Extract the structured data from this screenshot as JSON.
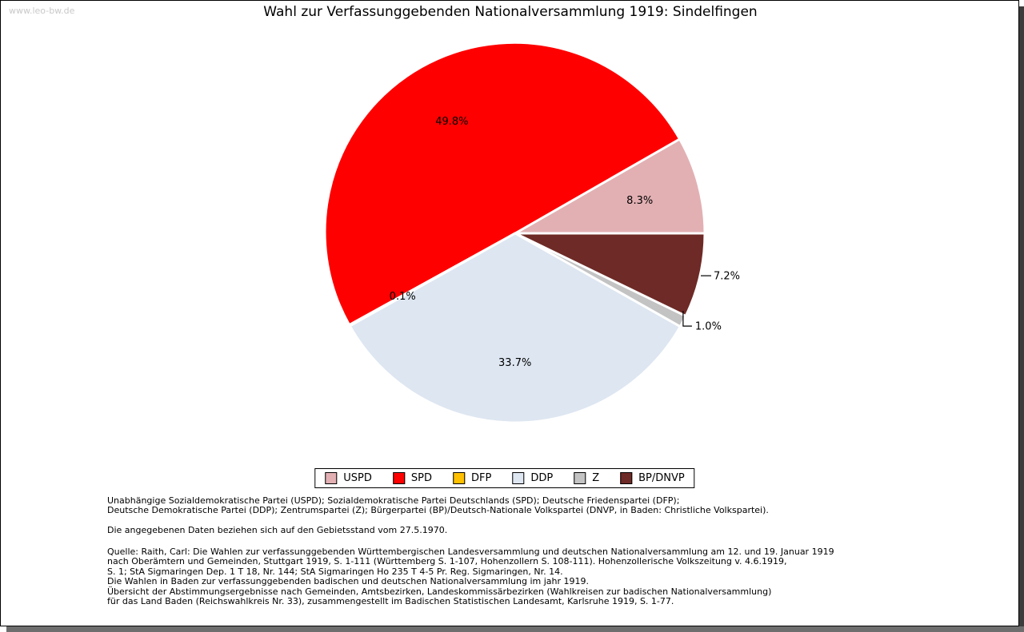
{
  "watermark": "www.leo-bw.de",
  "title": "Wahl zur Verfassunggebenden Nationalversammlung 1919: Sindelfingen",
  "chart_data": {
    "type": "pie",
    "title": "Wahl zur Verfassunggebenden Nationalversammlung 1919: Sindelfingen",
    "start_angle_deg": 0,
    "direction": "counterclockwise",
    "unit": "percent",
    "legend_position": "bottom",
    "slices": [
      {
        "label": "USPD",
        "value": 8.3,
        "display": "8.3%",
        "color": "#e2b0b3",
        "label_mode": "inside"
      },
      {
        "label": "SPD",
        "value": 49.8,
        "display": "49.8%",
        "color": "#ff0000",
        "label_mode": "inside"
      },
      {
        "label": "DFP",
        "value": 0.1,
        "display": "0.1%",
        "color": "#ffc000",
        "label_mode": "inside"
      },
      {
        "label": "DDP",
        "value": 33.7,
        "display": "33.7%",
        "color": "#dde6f1",
        "label_mode": "inside"
      },
      {
        "label": "Z",
        "value": 1.0,
        "display": "1.0%",
        "color": "#c3c3c3",
        "label_mode": "leader-elbow"
      },
      {
        "label": "BP/DNVP",
        "value": 7.2,
        "display": "7.2%",
        "color": "#6e2a26",
        "label_mode": "leader-h"
      }
    ]
  },
  "footnotes": {
    "party_lines": [
      "Unabhängige Sozialdemokratische Partei (USPD); Sozialdemokratische Partei Deutschlands (SPD); Deutsche Friedenspartei (DFP);",
      "Deutsche Demokratische Partei (DDP); Zentrumspartei (Z); Bürgerpartei (BP)/Deutsch-Nationale Volkspartei (DNVP, in Baden: Christliche Volkspartei)."
    ],
    "data_note": "Die angegebenen Daten beziehen sich auf den Gebietsstand vom 27.5.1970.",
    "source_lines": [
      "Quelle: Raith, Carl: Die Wahlen zur verfassunggebenden Württembergischen Landesversammlung und deutschen Nationalversammlung am 12. und 19. Januar 1919",
      "nach Oberämtern und Gemeinden, Stuttgart 1919, S. 1-111 (Württemberg S. 1-107, Hohenzollern S. 108-111). Hohenzollerische Volkszeitung v. 4.6.1919,",
      "S. 1; StA Sigmaringen Dep. 1 T 18, Nr. 144; StA Sigmaringen Ho 235 T 4-5 Pr. Reg. Sigmaringen, Nr. 14.",
      "Die Wahlen in Baden zur verfassunggebenden badischen und deutschen Nationalversammlung im jahr 1919.",
      "Übersicht der Abstimmungsergebnisse nach Gemeinden, Amtsbezirken, Landeskommissärbezirken (Wahlkreisen zur badischen Nationalversammlung)",
      "für das Land Baden (Reichswahlkreis Nr. 33), zusammengestellt im Badischen Statistischen Landesamt, Karlsruhe 1919, S. 1-77."
    ]
  }
}
